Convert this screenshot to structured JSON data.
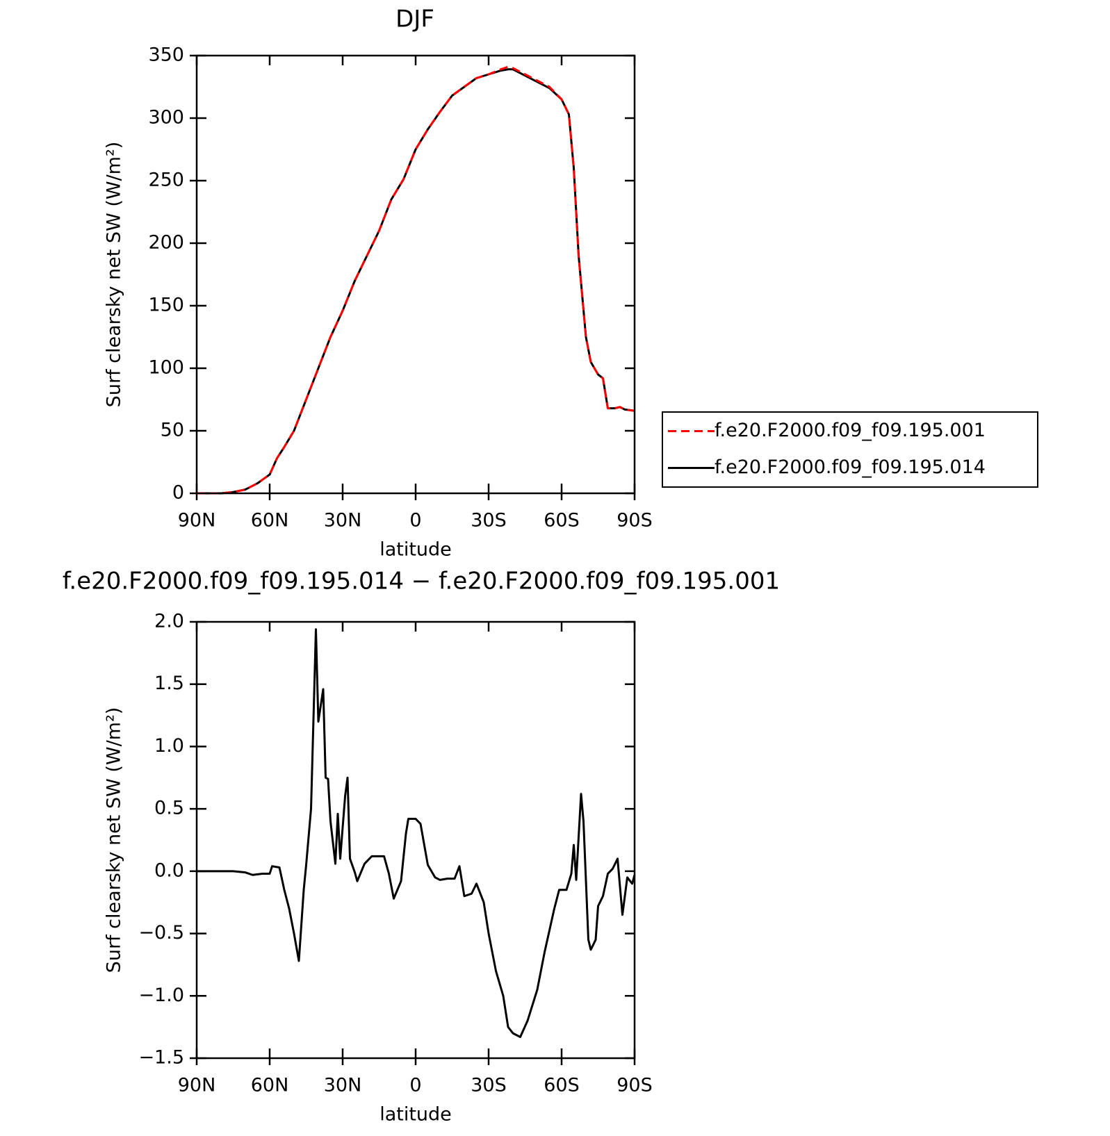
{
  "chart_data": [
    {
      "type": "line",
      "title": "DJF",
      "xlabel": "latitude",
      "ylabel": "Surf clearsky net SW (W/m²)",
      "x": [
        90,
        80,
        75,
        70,
        65,
        60,
        57,
        54,
        50,
        45,
        40,
        35,
        30,
        25,
        20,
        15,
        10,
        5,
        0,
        -5,
        -10,
        -15,
        -20,
        -25,
        -30,
        -35,
        -38,
        -40,
        -45,
        -50,
        -55,
        -60,
        -63,
        -65,
        -67,
        -70,
        -72,
        -75,
        -77,
        -79,
        -82,
        -84,
        -86,
        -90
      ],
      "series": [
        {
          "name": "f.e20.F2000.f09_f09.195.001",
          "color": "#ff0000",
          "dash": true,
          "values": [
            0,
            0,
            1,
            3,
            8,
            15,
            28,
            37,
            50,
            75,
            100,
            125,
            146,
            170,
            190,
            210,
            235,
            251,
            275,
            291,
            305,
            318,
            325,
            332,
            335,
            339,
            341,
            340,
            335,
            330,
            325,
            315,
            303,
            260,
            190,
            125,
            105,
            95,
            92,
            68,
            68,
            69,
            67,
            66
          ]
        },
        {
          "name": "f.e20.F2000.f09_f09.195.014",
          "color": "#000000",
          "dash": false,
          "values": [
            0,
            0,
            1,
            3,
            8,
            15,
            28,
            37,
            50,
            75,
            100,
            125,
            146,
            170,
            190,
            210,
            235,
            251,
            275,
            291,
            305,
            318,
            325,
            332,
            335,
            338,
            339,
            339,
            334,
            329,
            324,
            315,
            303,
            260,
            190,
            125,
            105,
            95,
            92,
            68,
            68,
            69,
            67,
            66
          ]
        }
      ],
      "xlim": [
        90,
        -90
      ],
      "xticks": [
        {
          "value": 90,
          "label": "90N"
        },
        {
          "value": 60,
          "label": "60N"
        },
        {
          "value": 30,
          "label": "30N"
        },
        0,
        {
          "value": -30,
          "label": "30S"
        },
        {
          "value": -60,
          "label": "60S"
        },
        {
          "value": -90,
          "label": "90S"
        }
      ],
      "ylim": [
        0,
        350
      ],
      "yticks": [
        0,
        50,
        100,
        150,
        200,
        250,
        300,
        350
      ],
      "legend": "right"
    },
    {
      "type": "line",
      "title": "f.e20.F2000.f09_f09.195.014 − f.e20.F2000.f09_f09.195.001",
      "xlabel": "latitude",
      "ylabel": "Surf clearsky net SW (W/m²)",
      "x": [
        90,
        75,
        70,
        67,
        63,
        60,
        59,
        56,
        54,
        52,
        50,
        48,
        46,
        45,
        43,
        41,
        40,
        38,
        37,
        36,
        35,
        33,
        32,
        31,
        29,
        28,
        27,
        25,
        24,
        21,
        18,
        15,
        13,
        11,
        9,
        6,
        4,
        3,
        0,
        -2,
        -5,
        -8,
        -10,
        -13,
        -16,
        -18,
        -20,
        -23,
        -25,
        -28,
        -30,
        -33,
        -36,
        -38,
        -40,
        -43,
        -46,
        -50,
        -53,
        -57,
        -59,
        -62,
        -64,
        -65,
        -66,
        -68,
        -69,
        -71,
        -72,
        -74,
        -75,
        -77,
        -79,
        -81,
        -83,
        -85,
        -87,
        -89,
        -90
      ],
      "series": [
        {
          "name": "difference",
          "color": "#000000",
          "dash": false,
          "values": [
            0,
            0,
            -0.01,
            -0.03,
            -0.02,
            -0.02,
            0.04,
            0.03,
            -0.15,
            -0.3,
            -0.5,
            -0.72,
            -0.15,
            0.05,
            0.5,
            1.94,
            1.2,
            1.46,
            0.75,
            0.74,
            0.4,
            0.06,
            0.46,
            0.1,
            0.6,
            0.75,
            0.1,
            -0.01,
            -0.08,
            0.06,
            0.12,
            0.12,
            0.12,
            -0.02,
            -0.22,
            -0.08,
            0.3,
            0.42,
            0.42,
            0.38,
            0.05,
            -0.05,
            -0.07,
            -0.06,
            -0.06,
            0.04,
            -0.2,
            -0.18,
            -0.1,
            -0.25,
            -0.5,
            -0.8,
            -1.0,
            -1.25,
            -1.3,
            -1.33,
            -1.2,
            -0.95,
            -0.65,
            -0.3,
            -0.15,
            -0.15,
            -0.02,
            0.21,
            -0.07,
            0.62,
            0.4,
            -0.55,
            -0.63,
            -0.55,
            -0.28,
            -0.2,
            -0.02,
            0.02,
            0.1,
            -0.35,
            -0.05,
            -0.1,
            -0.03
          ]
        }
      ],
      "xlim": [
        90,
        -90
      ],
      "xticks": [
        {
          "value": 90,
          "label": "90N"
        },
        {
          "value": 60,
          "label": "60N"
        },
        {
          "value": 30,
          "label": "30N"
        },
        0,
        {
          "value": -30,
          "label": "30S"
        },
        {
          "value": -60,
          "label": "60S"
        },
        {
          "value": -90,
          "label": "90S"
        }
      ],
      "ylim": [
        -1.5,
        2.0
      ],
      "yticks": [
        {
          "value": -1.5,
          "label": "−1.5"
        },
        {
          "value": -1.0,
          "label": "−1.0"
        },
        {
          "value": -0.5,
          "label": "−0.5"
        },
        {
          "value": 0,
          "label": "0.0"
        },
        0.5,
        {
          "value": 1.0,
          "label": "1.0"
        },
        1.5,
        {
          "value": 2.0,
          "label": "2.0"
        }
      ]
    }
  ]
}
